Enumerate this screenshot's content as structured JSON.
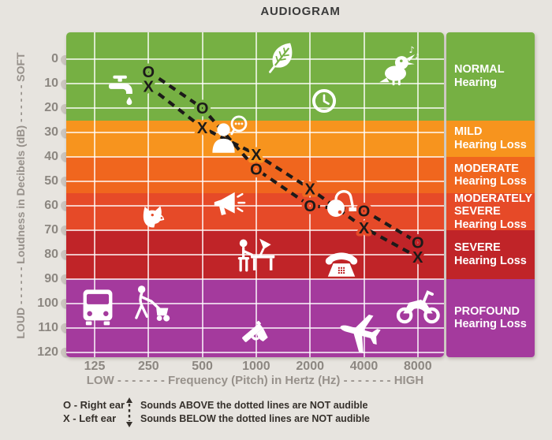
{
  "title": "AUDIOGRAM",
  "colors": {
    "background": "#E7E4DF",
    "grid_line": "rgba(255,255,255,0.72)",
    "data_line": "#1C1A19",
    "title_text": "#3B3B3B",
    "axis_text": "#8C8781",
    "legend_text": "#35302B",
    "tick_dot": "#CBC5BF",
    "panel_text": "#FFFFFF"
  },
  "y_axis": {
    "label": "LOUD - - - - - - Loudness in Decibels (dB) - - - - - - SOFT",
    "ticks": [
      0,
      10,
      20,
      30,
      40,
      50,
      60,
      70,
      80,
      90,
      100,
      110,
      120
    ]
  },
  "x_axis": {
    "label": "LOW - - - - - - - Frequency (Pitch) in Hertz (Hz) - - - - - - - HIGH",
    "ticks": [
      125,
      250,
      500,
      1000,
      2000,
      4000,
      8000
    ]
  },
  "legend": {
    "right_ear": "O - Right ear",
    "left_ear": "X - Left ear",
    "note_above": "Sounds ABOVE the dotted lines are NOT audible",
    "note_below": "Sounds BELOW the dotted lines are NOT audible"
  },
  "chart_data": {
    "type": "line",
    "title": "AUDIOGRAM",
    "xlabel": "Frequency (Pitch) in Hertz (Hz)",
    "ylabel": "Loudness in Decibels (dB)",
    "x_scale": "log2",
    "y_inverted": true,
    "xlim": [
      125,
      8000
    ],
    "ylim": [
      -11,
      122
    ],
    "x": [
      250,
      500,
      1000,
      2000,
      4000,
      8000
    ],
    "series": [
      {
        "name": "Right ear",
        "marker": "O",
        "values": [
          5,
          20,
          45,
          60,
          62,
          75
        ]
      },
      {
        "name": "Left ear",
        "marker": "X",
        "values": [
          11,
          28,
          39,
          53,
          69,
          81
        ]
      }
    ],
    "bands": [
      {
        "label_lines": [
          "NORMAL",
          "Hearing"
        ],
        "range_db": [
          -11,
          25
        ],
        "color": "#76B043"
      },
      {
        "label_lines": [
          "MILD",
          "Hearing Loss"
        ],
        "range_db": [
          25,
          40
        ],
        "color": "#F7941E"
      },
      {
        "label_lines": [
          "MODERATE",
          "Hearing Loss"
        ],
        "range_db": [
          40,
          55
        ],
        "color": "#F0661E"
      },
      {
        "label_lines": [
          "MODERATELY",
          "SEVERE",
          "Hearing Loss"
        ],
        "range_db": [
          55,
          70
        ],
        "color": "#E64A28"
      },
      {
        "label_lines": [
          "SEVERE",
          "Hearing Loss"
        ],
        "range_db": [
          70,
          90
        ],
        "color": "#C02428"
      },
      {
        "label_lines": [
          "PROFOUND",
          "Hearing Loss"
        ],
        "range_db": [
          90,
          122
        ],
        "color": "#A43A9D"
      }
    ],
    "sound_icons": [
      {
        "name": "faucet",
        "freq_hz": 175,
        "db": 13
      },
      {
        "name": "leaf",
        "freq_hz": 1400,
        "db": -1
      },
      {
        "name": "bird",
        "freq_hz": 6300,
        "db": 3
      },
      {
        "name": "clock",
        "freq_hz": 2400,
        "db": 17
      },
      {
        "name": "whisper",
        "freq_hz": 700,
        "db": 31
      },
      {
        "name": "dog",
        "freq_hz": 260,
        "db": 65
      },
      {
        "name": "megaphone",
        "freq_hz": 700,
        "db": 60
      },
      {
        "name": "vacuum",
        "freq_hz": 3000,
        "db": 58
      },
      {
        "name": "desk-worker",
        "freq_hz": 1000,
        "db": 80
      },
      {
        "name": "telephone",
        "freq_hz": 3000,
        "db": 83
      },
      {
        "name": "bus",
        "freq_hz": 130,
        "db": 101
      },
      {
        "name": "lawnmower",
        "freq_hz": 260,
        "db": 100
      },
      {
        "name": "handgun",
        "freq_hz": 1000,
        "db": 112
      },
      {
        "name": "airplane",
        "freq_hz": 3900,
        "db": 112
      },
      {
        "name": "motorcycle",
        "freq_hz": 8000,
        "db": 100
      }
    ]
  }
}
